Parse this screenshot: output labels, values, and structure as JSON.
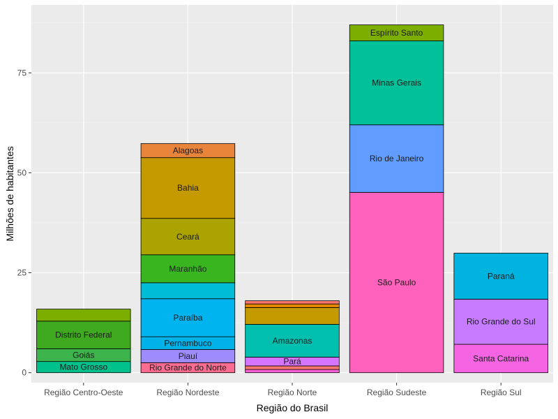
{
  "chart_data": {
    "type": "bar",
    "stacked": true,
    "xlabel": "Região do Brasil",
    "ylabel": "Milhões de habitantes",
    "ylim": [
      -2.5,
      92
    ],
    "yticks": [
      0,
      25,
      50,
      75
    ],
    "grid": true,
    "categories": [
      "Região Centro-Oeste",
      "Região Nordeste",
      "Região Norte",
      "Região Sudeste",
      "Região Sul"
    ],
    "stacks": [
      {
        "category": "Região Centro-Oeste",
        "segments": [
          {
            "label": "Mato Grosso",
            "value": 2.8,
            "color": "#00c08b"
          },
          {
            "label": "Goiás",
            "value": 3.2,
            "color": "#3cb44b"
          },
          {
            "label": "Distrito Federal",
            "value": 6.9,
            "color": "#3faa1f"
          },
          {
            "label": "",
            "value": 3.0,
            "color": "#7cae00"
          }
        ]
      },
      {
        "category": "Região Nordeste",
        "segments": [
          {
            "label": "Rio Grande do Norte",
            "value": 2.5,
            "color": "#ff6c91"
          },
          {
            "label": "Piauí",
            "value": 3.3,
            "color": "#9e8cff"
          },
          {
            "label": "Pernambuco",
            "value": 3.2,
            "color": "#00b2e8"
          },
          {
            "label": "Paraíba",
            "value": 9.5,
            "color": "#00b4f0"
          },
          {
            "label": "",
            "value": 4.0,
            "color": "#00bcd6"
          },
          {
            "label": "Maranhão",
            "value": 7.0,
            "color": "#39b61f"
          },
          {
            "label": "Ceará",
            "value": 9.1,
            "color": "#aba300"
          },
          {
            "label": "Bahia",
            "value": 15.2,
            "color": "#c49a00"
          },
          {
            "label": "Alagoas",
            "value": 3.5,
            "color": "#e8853b"
          }
        ]
      },
      {
        "category": "Região Norte",
        "segments": [
          {
            "label": "",
            "value": 0.8,
            "color": "#fb61d7"
          },
          {
            "label": "",
            "value": 0.9,
            "color": "#f8766d"
          },
          {
            "label": "Pará",
            "value": 2.2,
            "color": "#d575fe"
          },
          {
            "label": "Amazonas",
            "value": 8.2,
            "color": "#00bfae"
          },
          {
            "label": "",
            "value": 4.2,
            "color": "#c49a00"
          },
          {
            "label": "",
            "value": 0.9,
            "color": "#e58700"
          },
          {
            "label": "",
            "value": 0.8,
            "color": "#f8766d"
          }
        ]
      },
      {
        "category": "Região Sudeste",
        "segments": [
          {
            "label": "São Paulo",
            "value": 45.1,
            "color": "#ff62bc"
          },
          {
            "label": "Rio de Janeiro",
            "value": 16.9,
            "color": "#619cff"
          },
          {
            "label": "Minas Gerais",
            "value": 21.0,
            "color": "#00c19a"
          },
          {
            "label": "Espírito Santo",
            "value": 4.0,
            "color": "#7cae00"
          }
        ]
      },
      {
        "category": "Região Sul",
        "segments": [
          {
            "label": "Santa Catarina",
            "value": 7.1,
            "color": "#f564e3"
          },
          {
            "label": "Rio Grande do Sul",
            "value": 11.3,
            "color": "#c77cff"
          },
          {
            "label": "Paraná",
            "value": 11.5,
            "color": "#00b4e0"
          }
        ]
      }
    ]
  }
}
